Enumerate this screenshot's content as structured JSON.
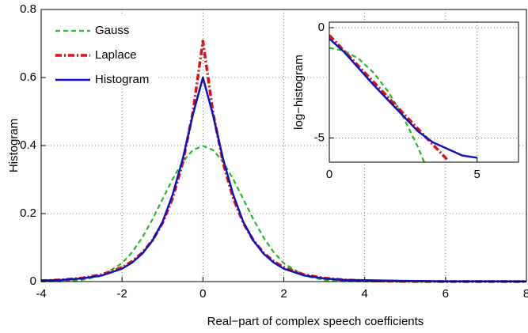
{
  "chart_data": [
    {
      "type": "line",
      "xlabel": "Real−part of complex speech coefficients",
      "ylabel": "Histogram",
      "x": [
        -4,
        -3.5,
        -3,
        -2.5,
        -2,
        -1.75,
        -1.5,
        -1.25,
        -1,
        -0.75,
        -0.5,
        -0.25,
        0,
        0.25,
        0.5,
        0.75,
        1,
        1.25,
        1.5,
        1.75,
        2,
        2.5,
        3,
        3.5,
        4,
        5,
        6,
        7,
        8
      ],
      "series": [
        {
          "name": "Gauss",
          "color": "#22bb22",
          "linestyle": "dashed",
          "values": [
            0.0001,
            0.0009,
            0.0044,
            0.0175,
            0.054,
            0.0863,
            0.1295,
            0.1826,
            0.242,
            0.3011,
            0.3521,
            0.3867,
            0.3989,
            0.3867,
            0.3521,
            0.3011,
            0.242,
            0.1826,
            0.1295,
            0.0863,
            0.054,
            0.0175,
            0.0044,
            0.0009,
            0.0001,
            0,
            0,
            0,
            0
          ]
        },
        {
          "name": "Laplace",
          "color": "#dd1111",
          "linestyle": "dashdot",
          "values": [
            0.0025,
            0.005,
            0.0102,
            0.0206,
            0.0418,
            0.0596,
            0.0848,
            0.1208,
            0.172,
            0.2449,
            0.3487,
            0.4965,
            0.7071,
            0.4965,
            0.3487,
            0.2449,
            0.172,
            0.1208,
            0.0848,
            0.0596,
            0.0418,
            0.0206,
            0.0102,
            0.005,
            0.0025,
            0.0006,
            0.0001,
            0,
            0
          ]
        },
        {
          "name": "Histogram",
          "color": "#1111bb",
          "linestyle": "solid",
          "values": [
            0.003,
            0.005,
            0.009,
            0.018,
            0.038,
            0.056,
            0.082,
            0.12,
            0.175,
            0.255,
            0.36,
            0.49,
            0.6,
            0.49,
            0.36,
            0.255,
            0.175,
            0.12,
            0.082,
            0.056,
            0.038,
            0.018,
            0.009,
            0.005,
            0.004,
            0.002,
            0.001,
            0.001,
            0.0005
          ]
        }
      ],
      "xlim": [
        -4,
        8
      ],
      "xticks": [
        -4,
        -2,
        0,
        2,
        4,
        6,
        8
      ],
      "ylim": [
        0,
        0.8
      ],
      "yticks": [
        0,
        0.2,
        0.4,
        0.6,
        0.8
      ],
      "grid": true,
      "legend": "upper left"
    },
    {
      "type": "line",
      "ylabel": "log−histogram",
      "x": [
        0,
        0.5,
        1,
        1.5,
        2,
        2.5,
        3,
        3.5,
        4,
        4.5,
        5
      ],
      "series": [
        {
          "name": "Gauss",
          "color": "#22bb22",
          "linestyle": "dashed",
          "values": [
            -0.919,
            -1.044,
            -1.419,
            -2.044,
            -2.919,
            -4.044,
            -5.419,
            -7.044,
            null,
            null,
            null
          ]
        },
        {
          "name": "Laplace",
          "color": "#dd1111",
          "linestyle": "dashdot",
          "values": [
            -0.347,
            -1.054,
            -1.761,
            -2.468,
            -3.175,
            -3.882,
            -4.589,
            -5.296,
            -6.003,
            null,
            null
          ]
        },
        {
          "name": "Histogram",
          "color": "#1111bb",
          "linestyle": "solid",
          "values": [
            -0.5,
            -1.1,
            -1.85,
            -2.6,
            -3.3,
            -4.0,
            -4.7,
            -5.2,
            -5.5,
            -5.8,
            -5.9
          ]
        }
      ],
      "xlim": [
        0,
        6.4
      ],
      "xticks": [
        0,
        5
      ],
      "ylim": [
        -6.1,
        0.25
      ],
      "yticks": [
        -5,
        0
      ],
      "grid": true
    }
  ]
}
